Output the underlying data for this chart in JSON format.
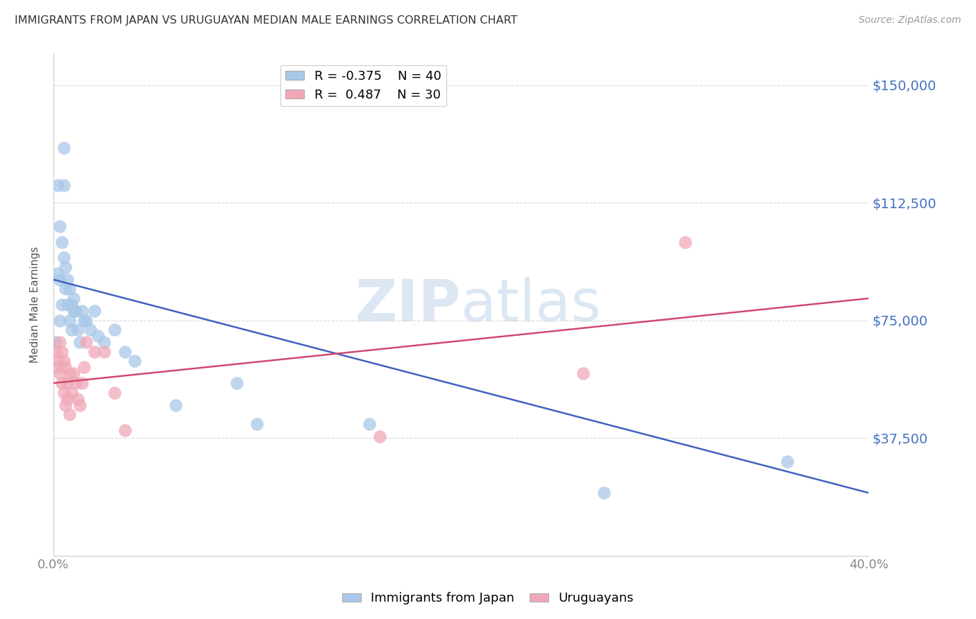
{
  "title": "IMMIGRANTS FROM JAPAN VS URUGUAYAN MEDIAN MALE EARNINGS CORRELATION CHART",
  "source": "Source: ZipAtlas.com",
  "ylabel": "Median Male Earnings",
  "yticks": [
    0,
    37500,
    75000,
    112500,
    150000
  ],
  "ytick_labels": [
    "",
    "$37,500",
    "$75,000",
    "$112,500",
    "$150,000"
  ],
  "xlim": [
    0.0,
    0.4
  ],
  "ylim": [
    0,
    160000
  ],
  "background_color": "#ffffff",
  "blue_color": "#a8c8e8",
  "pink_color": "#f0a8b8",
  "blue_line_color": "#4060c0",
  "pink_line_color": "#d04870",
  "axis_label_color": "#4472c4",
  "tick_color": "#888888",
  "grid_color": "#d8d8d8",
  "legend_r1": "R = -0.375",
  "legend_n1": "N = 40",
  "legend_r2": "R =  0.487",
  "legend_n2": "N = 30",
  "watermark_zip": "ZIP",
  "watermark_atlas": "atlas",
  "blue_scatter_x": [
    0.001,
    0.002,
    0.002,
    0.003,
    0.003,
    0.003,
    0.004,
    0.004,
    0.005,
    0.005,
    0.005,
    0.006,
    0.006,
    0.007,
    0.007,
    0.008,
    0.008,
    0.009,
    0.009,
    0.01,
    0.01,
    0.011,
    0.012,
    0.013,
    0.014,
    0.015,
    0.016,
    0.018,
    0.02,
    0.022,
    0.025,
    0.03,
    0.035,
    0.04,
    0.06,
    0.09,
    0.1,
    0.155,
    0.27,
    0.36
  ],
  "blue_scatter_y": [
    68000,
    118000,
    90000,
    105000,
    88000,
    75000,
    100000,
    80000,
    130000,
    118000,
    95000,
    92000,
    85000,
    88000,
    80000,
    85000,
    75000,
    80000,
    72000,
    78000,
    82000,
    78000,
    72000,
    68000,
    78000,
    75000,
    75000,
    72000,
    78000,
    70000,
    68000,
    72000,
    65000,
    62000,
    48000,
    55000,
    42000,
    42000,
    20000,
    30000
  ],
  "pink_scatter_x": [
    0.001,
    0.002,
    0.002,
    0.003,
    0.003,
    0.004,
    0.004,
    0.005,
    0.005,
    0.006,
    0.006,
    0.007,
    0.007,
    0.008,
    0.008,
    0.009,
    0.01,
    0.011,
    0.012,
    0.013,
    0.014,
    0.015,
    0.016,
    0.02,
    0.025,
    0.03,
    0.035,
    0.16,
    0.26,
    0.31
  ],
  "pink_scatter_y": [
    65000,
    62000,
    60000,
    68000,
    58000,
    65000,
    55000,
    62000,
    52000,
    60000,
    48000,
    55000,
    50000,
    58000,
    45000,
    52000,
    58000,
    55000,
    50000,
    48000,
    55000,
    60000,
    68000,
    65000,
    65000,
    52000,
    40000,
    38000,
    58000,
    100000
  ],
  "blue_line_x": [
    0.0,
    0.4
  ],
  "blue_line_y": [
    88000,
    20000
  ],
  "pink_line_x": [
    0.0,
    0.4
  ],
  "pink_line_y": [
    55000,
    82000
  ],
  "xtick_positions": [
    0.0,
    0.08,
    0.16,
    0.24,
    0.32,
    0.4
  ],
  "xtick_labels_show": [
    "0.0%",
    "",
    "",
    "",
    "",
    "40.0%"
  ]
}
